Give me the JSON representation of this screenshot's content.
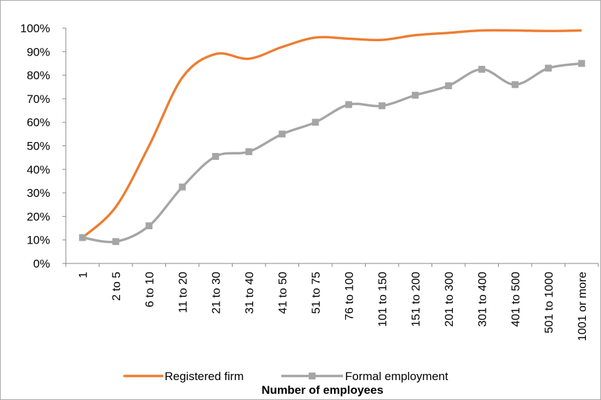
{
  "chart_data": {
    "type": "line",
    "x_label": "Number of employees",
    "categories": [
      "1",
      "2 to 5",
      "6 to 10",
      "11 to 20",
      "21 to 30",
      "31 to 40",
      "41 to 50",
      "51 to 75",
      "76 to 100",
      "101 to 150",
      "151 to 200",
      "201 to 300",
      "301 to 400",
      "401 to 500",
      "501 to 1000",
      "1001 or more"
    ],
    "series": [
      {
        "name": "Registered firm",
        "color": "#ED7D31",
        "marker": "none",
        "values": [
          11,
          24,
          50,
          79,
          89,
          87,
          92,
          96,
          95.5,
          95,
          97,
          98,
          99,
          99,
          98.8,
          99
        ]
      },
      {
        "name": "Formal employment",
        "color": "#A5A5A5",
        "marker": "square",
        "values": [
          11,
          9.3,
          16,
          32.5,
          45.5,
          47.5,
          55,
          60,
          67.5,
          67,
          71.5,
          75.5,
          82.5,
          76,
          83,
          85
        ]
      }
    ],
    "ylim": [
      0,
      100
    ],
    "yticks": [
      {
        "value": 0,
        "label": "0%"
      },
      {
        "value": 10,
        "label": "10%"
      },
      {
        "value": 20,
        "label": "20%"
      },
      {
        "value": 30,
        "label": "30%"
      },
      {
        "value": 40,
        "label": "40%"
      },
      {
        "value": 50,
        "label": "50%"
      },
      {
        "value": 60,
        "label": "60%"
      },
      {
        "value": 70,
        "label": "70%"
      },
      {
        "value": 80,
        "label": "80%"
      },
      {
        "value": 90,
        "label": "90%"
      },
      {
        "value": 100,
        "label": "100%"
      }
    ],
    "smooth": true,
    "grid": false,
    "legend": "bottom"
  }
}
